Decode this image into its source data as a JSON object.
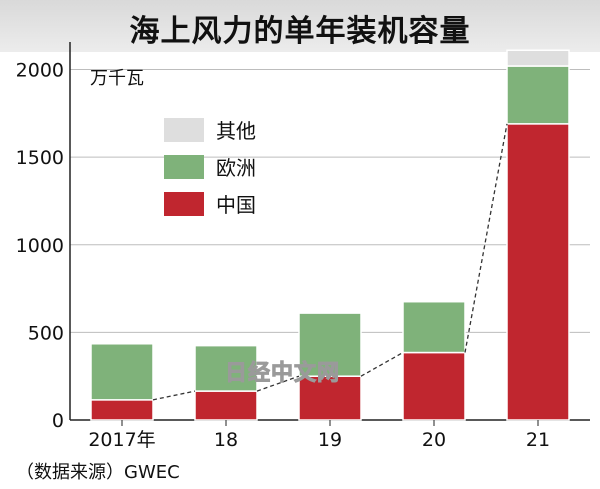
{
  "title": "海上风力的单年装机容量",
  "source": "（数据来源）GWEC",
  "watermark": "日经中文网",
  "colors": {
    "china": "#c0262f",
    "europe": "#7fb27a",
    "other": "#dedede"
  },
  "chart_data": {
    "type": "bar",
    "stacked": true,
    "title": "海上风力的单年装机容量",
    "ylabel": "万千瓦",
    "ylim": [
      0,
      2100
    ],
    "yticks": [
      0,
      500,
      1000,
      1500,
      2000
    ],
    "categories": [
      "2017年",
      "18",
      "19",
      "20",
      "21"
    ],
    "series": [
      {
        "name": "中国",
        "values": [
          115,
          165,
          250,
          385,
          1690
        ]
      },
      {
        "name": "欧洲",
        "values": [
          320,
          260,
          360,
          290,
          330
        ]
      },
      {
        "name": "其他",
        "values": [
          0,
          5,
          0,
          0,
          90
        ]
      }
    ],
    "grid": true,
    "legend_position": "top-left",
    "connector": "dashed line linking tops of 中国 segments"
  }
}
